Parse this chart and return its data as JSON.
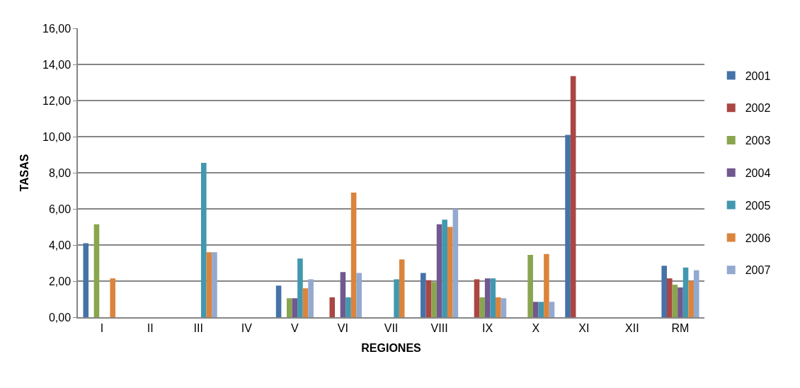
{
  "chart_data": {
    "type": "bar",
    "xlabel": "REGIONES",
    "ylabel": "TASAS",
    "categories": [
      "I",
      "II",
      "III",
      "IV",
      "V",
      "VI",
      "VII",
      "VIII",
      "IX",
      "X",
      "XI",
      "XII",
      "RM"
    ],
    "series": [
      {
        "name": "2001",
        "color": "#4573a8",
        "values": [
          4.1,
          null,
          null,
          null,
          1.75,
          null,
          null,
          2.45,
          null,
          null,
          10.1,
          null,
          2.85
        ]
      },
      {
        "name": "2002",
        "color": "#aa4643",
        "values": [
          null,
          null,
          null,
          null,
          null,
          1.1,
          null,
          2.05,
          2.1,
          null,
          13.35,
          null,
          2.15
        ]
      },
      {
        "name": "2003",
        "color": "#89a54e",
        "values": [
          5.15,
          null,
          null,
          null,
          1.05,
          null,
          null,
          1.95,
          1.1,
          3.45,
          null,
          null,
          1.8
        ]
      },
      {
        "name": "2004",
        "color": "#71588f",
        "values": [
          null,
          null,
          null,
          null,
          1.05,
          2.5,
          null,
          5.15,
          2.15,
          0.85,
          null,
          null,
          1.65
        ]
      },
      {
        "name": "2005",
        "color": "#4198af",
        "values": [
          null,
          null,
          8.55,
          null,
          3.25,
          1.1,
          2.1,
          5.4,
          2.15,
          0.85,
          null,
          null,
          2.75
        ]
      },
      {
        "name": "2006",
        "color": "#db843d",
        "values": [
          2.15,
          null,
          3.6,
          null,
          1.6,
          6.9,
          3.2,
          5.0,
          1.1,
          3.5,
          null,
          null,
          2.0
        ]
      },
      {
        "name": "2007",
        "color": "#93a9cf",
        "values": [
          null,
          null,
          3.6,
          null,
          2.1,
          2.45,
          null,
          6.0,
          1.05,
          0.85,
          null,
          null,
          2.6
        ]
      }
    ],
    "ylim": [
      0,
      16
    ],
    "yticks": [
      {
        "value": 0,
        "label": "0,00"
      },
      {
        "value": 2,
        "label": "2,00"
      },
      {
        "value": 4,
        "label": "4,00"
      },
      {
        "value": 6,
        "label": "6,00"
      },
      {
        "value": 8,
        "label": "8,00"
      },
      {
        "value": 10,
        "label": "10,00"
      },
      {
        "value": 12,
        "label": "12,00"
      },
      {
        "value": 14,
        "label": "14,00"
      },
      {
        "value": 16,
        "label": "16,00"
      }
    ],
    "grid": "y",
    "legend": "right"
  }
}
